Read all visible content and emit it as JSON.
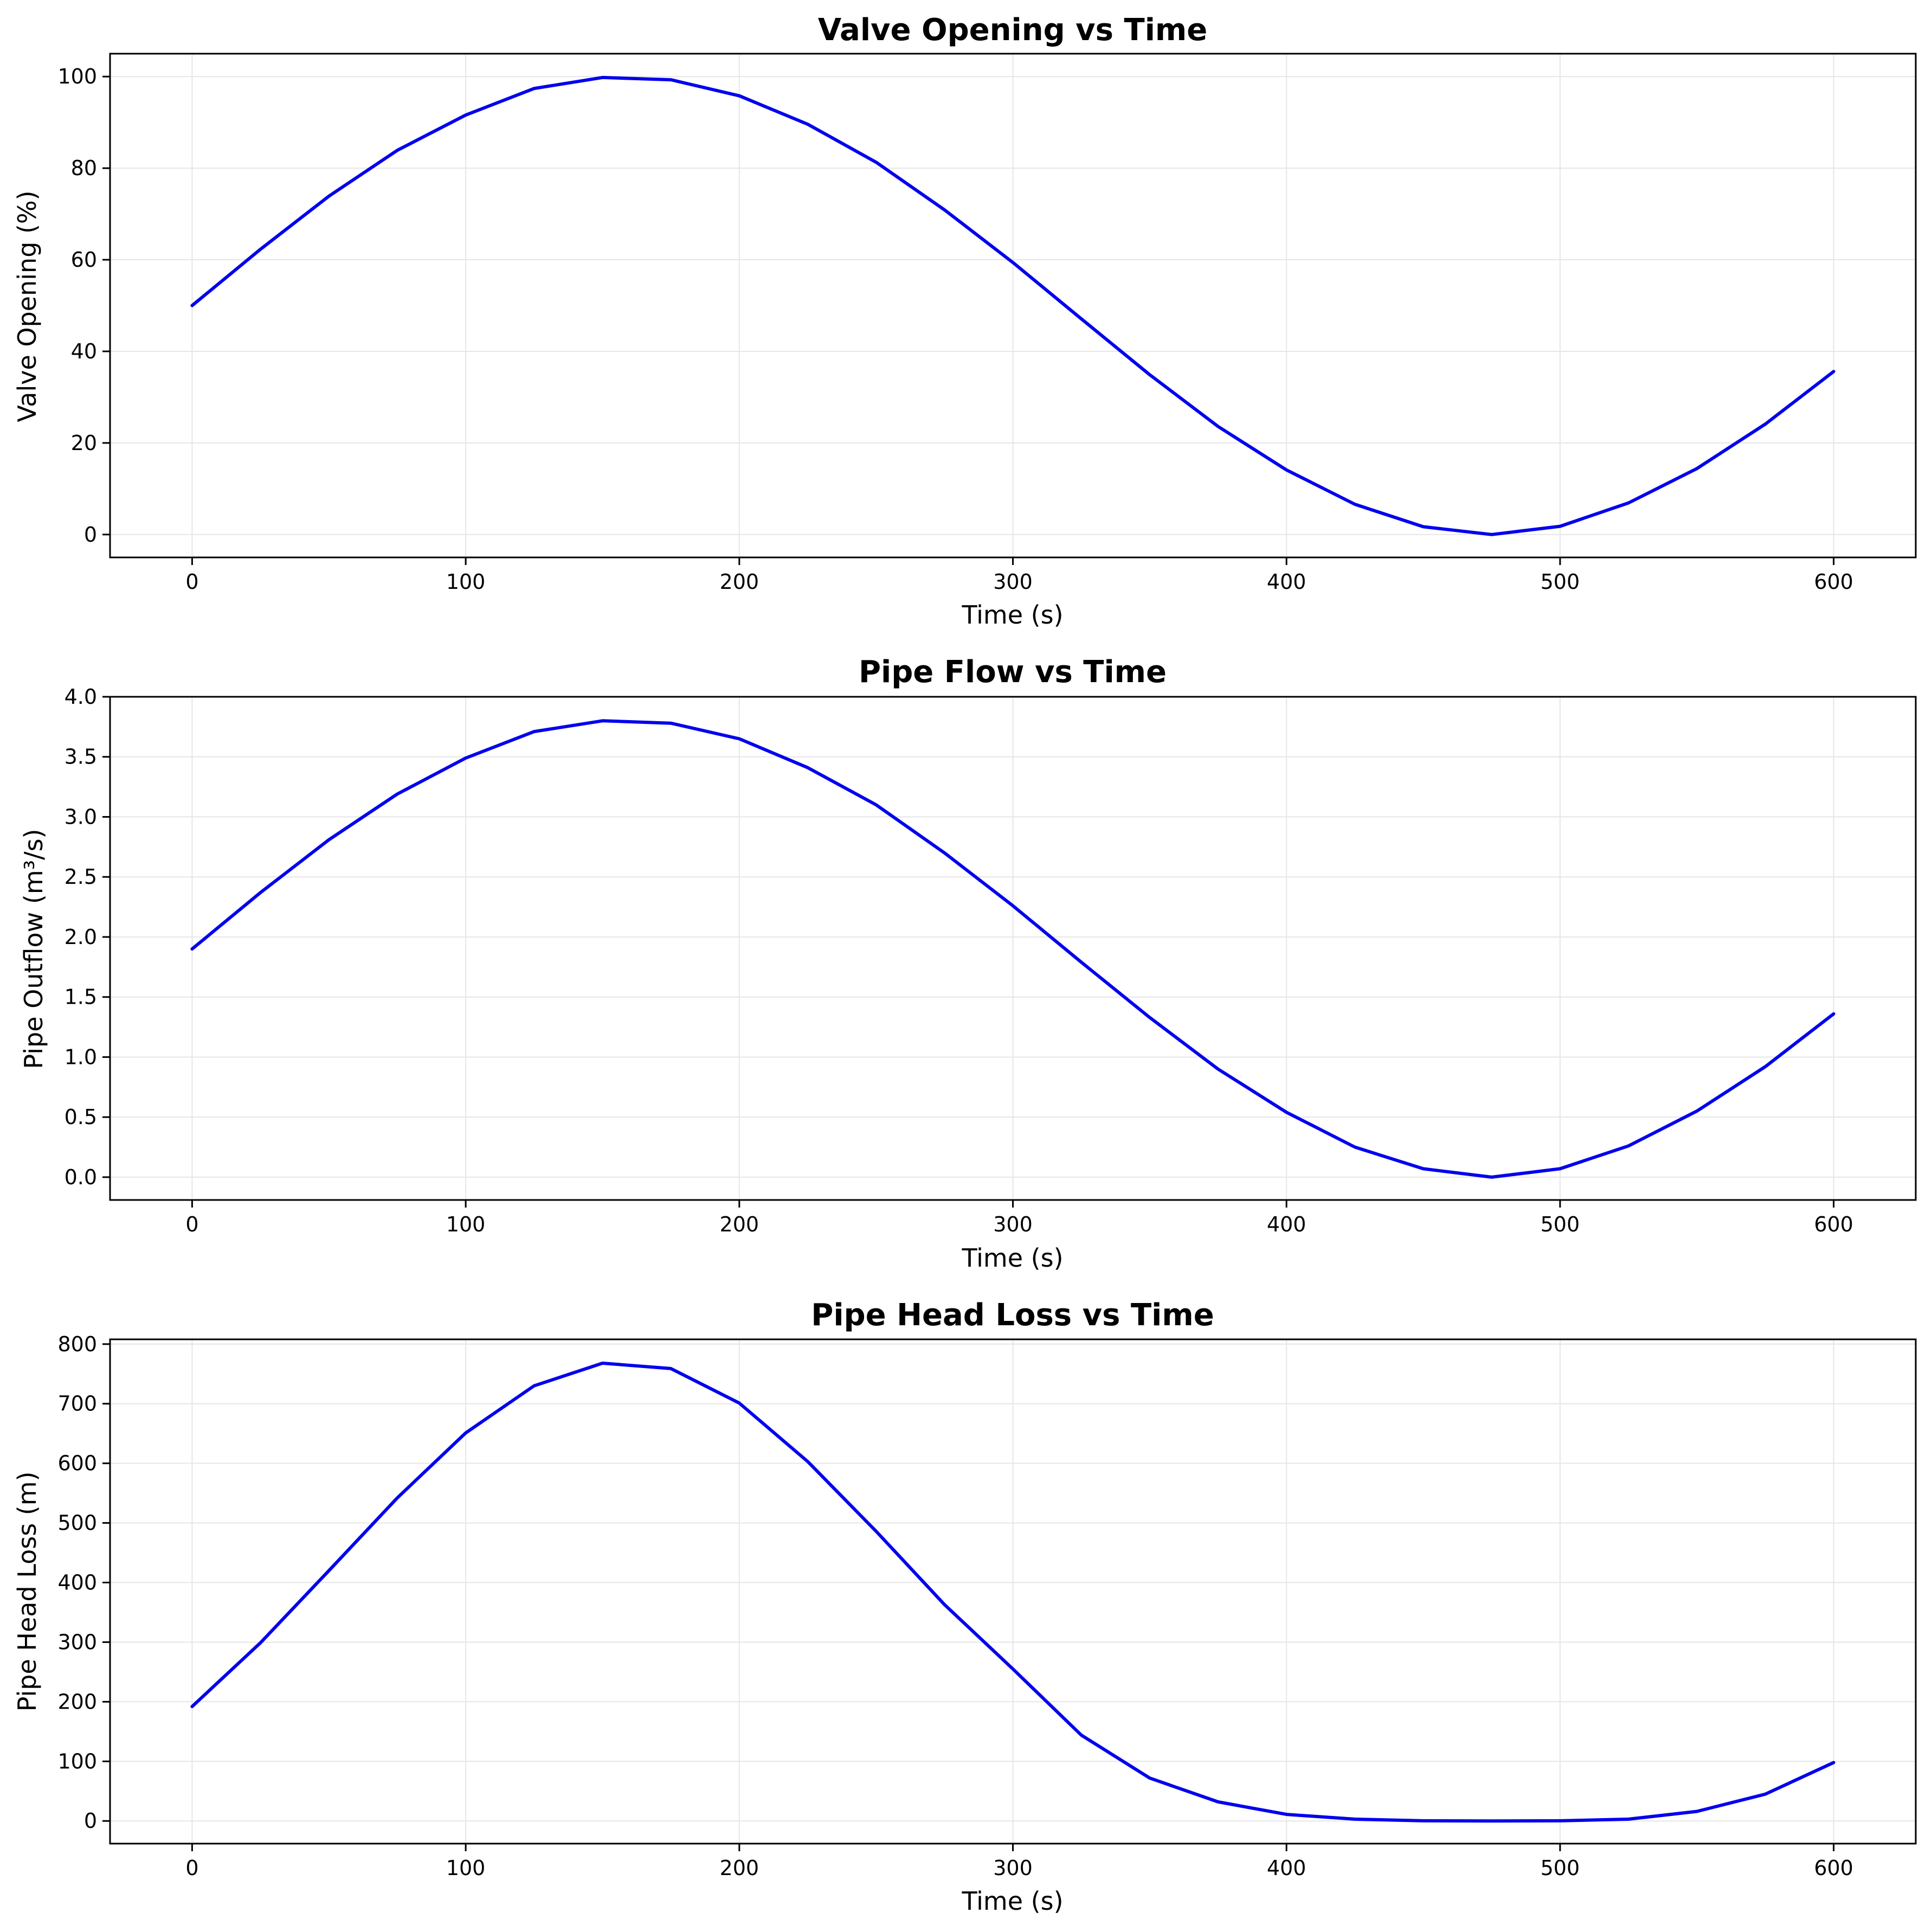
{
  "line_color": "#0000ee",
  "grid_color": "#e6e6e6",
  "chart_data": [
    {
      "type": "line",
      "title": "Valve Opening vs Time",
      "xlabel": "Time (s)",
      "ylabel": "Valve Opening (%)",
      "xlim": [
        -30,
        630
      ],
      "ylim": [
        -5,
        105
      ],
      "xticks": [
        0,
        100,
        200,
        300,
        400,
        500,
        600
      ],
      "yticks": [
        0,
        20,
        40,
        60,
        80,
        100
      ],
      "grid": true,
      "legend": "none",
      "x": [
        0,
        25,
        50,
        75,
        100,
        125,
        150,
        175,
        200,
        225,
        250,
        275,
        300,
        325,
        350,
        375,
        400,
        425,
        450,
        475,
        500,
        525,
        550,
        575,
        600
      ],
      "y": [
        50,
        62.3,
        73.9,
        83.9,
        91.6,
        97.4,
        99.8,
        99.3,
        95.8,
        89.6,
        81.3,
        70.9,
        59.4,
        47.1,
        34.9,
        23.6,
        14.1,
        6.6,
        1.7,
        0,
        1.8,
        6.9,
        14.4,
        24.1,
        35.6
      ]
    },
    {
      "type": "line",
      "title": "Pipe Flow vs Time",
      "xlabel": "Time (s)",
      "ylabel": "Pipe Outflow (m³/s)",
      "xlim": [
        -30,
        630
      ],
      "ylim": [
        -0.19,
        4.0
      ],
      "xticks": [
        0,
        100,
        200,
        300,
        400,
        500,
        600
      ],
      "yticks": [
        0.0,
        0.5,
        1.0,
        1.5,
        2.0,
        2.5,
        3.0,
        3.5,
        4.0
      ],
      "grid": true,
      "legend": "none",
      "x": [
        0,
        25,
        50,
        75,
        100,
        125,
        150,
        175,
        200,
        225,
        250,
        275,
        300,
        325,
        350,
        375,
        400,
        425,
        450,
        475,
        500,
        525,
        550,
        575,
        600
      ],
      "y": [
        1.9,
        2.37,
        2.81,
        3.19,
        3.49,
        3.71,
        3.8,
        3.78,
        3.65,
        3.41,
        3.1,
        2.7,
        2.26,
        1.79,
        1.33,
        0.9,
        0.54,
        0.25,
        0.07,
        0,
        0.07,
        0.26,
        0.55,
        0.92,
        1.36
      ]
    },
    {
      "type": "line",
      "title": "Pipe Head Loss vs Time",
      "xlabel": "Time (s)",
      "ylabel": "Pipe Head Loss (m)",
      "xlim": [
        -30,
        630
      ],
      "ylim": [
        -38,
        808
      ],
      "xticks": [
        0,
        100,
        200,
        300,
        400,
        500,
        600
      ],
      "yticks": [
        0,
        100,
        200,
        300,
        400,
        500,
        600,
        700,
        800
      ],
      "grid": true,
      "legend": "none",
      "x": [
        0,
        25,
        50,
        75,
        100,
        125,
        150,
        175,
        200,
        225,
        250,
        275,
        300,
        325,
        350,
        375,
        400,
        425,
        450,
        475,
        500,
        525,
        550,
        575,
        600
      ],
      "y": [
        192,
        299,
        420,
        542,
        651,
        730,
        768,
        759,
        701,
        603,
        486,
        363,
        255,
        144,
        72,
        32,
        11,
        3,
        0.3,
        0,
        0.3,
        3,
        16,
        45,
        98
      ]
    }
  ]
}
